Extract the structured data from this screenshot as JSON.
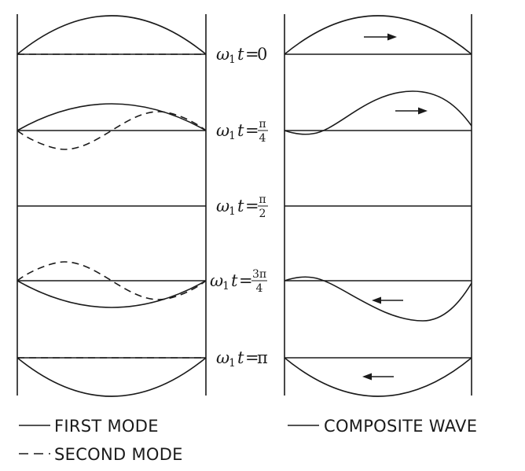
{
  "labels": [
    {
      "omega": "ω",
      "sub": "1",
      "t": "t",
      "eq": "=",
      "value": "0"
    },
    {
      "omega": "ω",
      "sub": "1",
      "t": "t",
      "eq": "=",
      "num": "π",
      "den": "4"
    },
    {
      "omega": "ω",
      "sub": "1",
      "t": "t",
      "eq": "=",
      "num": "π",
      "den": "2"
    },
    {
      "omega": "ω",
      "sub": "1",
      "t": "t",
      "eq": "=",
      "num": "3π",
      "den": "4"
    },
    {
      "omega": "ω",
      "sub": "1",
      "t": "t",
      "eq": "=",
      "value": "π"
    }
  ],
  "legend": {
    "first_mode": "FIRST MODE",
    "second_mode": "SECOND MODE",
    "composite_wave": "COMPOSITE WAVE"
  }
}
